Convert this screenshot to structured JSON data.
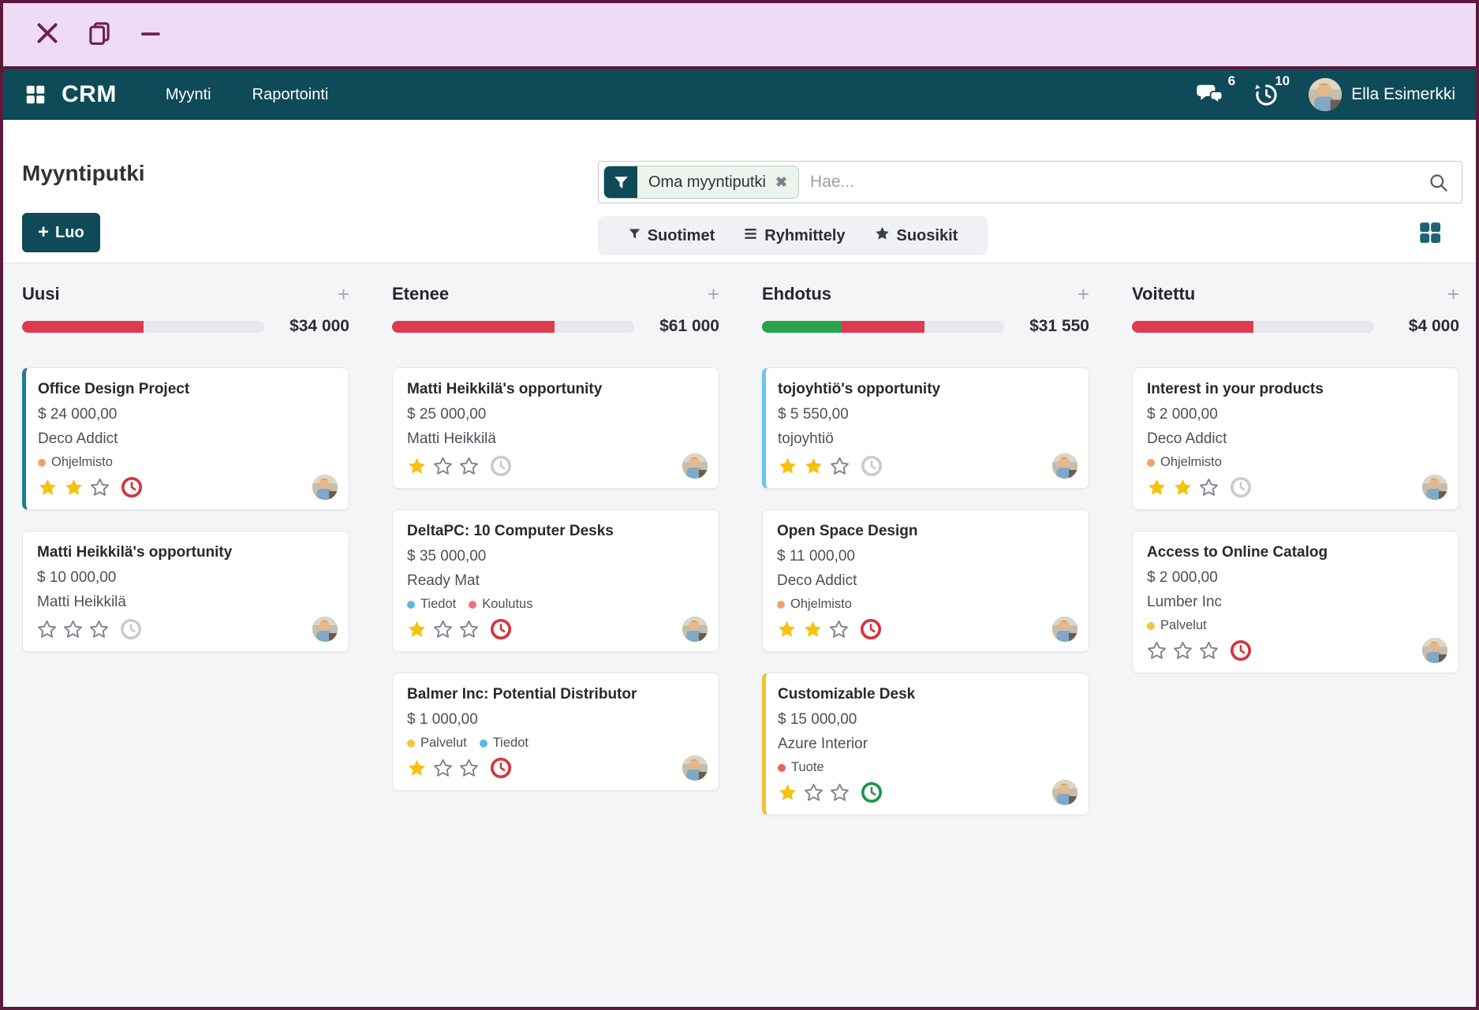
{
  "window": {
    "titlebar_color": "#eedcf6",
    "border_color": "#5c1b3c",
    "controls": [
      {
        "name": "close"
      },
      {
        "name": "restore"
      },
      {
        "name": "minimize"
      }
    ]
  },
  "navbar": {
    "bg_color": "#0e4a58",
    "app_name": "CRM",
    "menus": [
      "Myynti",
      "Raportointi"
    ],
    "icons": {
      "apps": "apps-grid-icon",
      "messages": "messages-bubble-icon",
      "activities": "activity-clock-icon"
    },
    "messages_count": "6",
    "activities_count": "10",
    "user_name": "Ella Esimerkki"
  },
  "header": {
    "title": "Myyntiputki",
    "create_label": "Luo",
    "search": {
      "filter_chip": "Oma myyntiputki",
      "chip_icon": "filter-funnel-icon",
      "remove_icon": "remove-filter-icon",
      "placeholder": "Hae...",
      "search_icon": "search-icon"
    },
    "controls": [
      {
        "label": "Suotimet",
        "icon": "filter-funnel-icon"
      },
      {
        "label": "Ryhmittely",
        "icon": "group-by-icon"
      },
      {
        "label": "Suosikit",
        "icon": "favorites-star-icon"
      }
    ],
    "view_switcher_icon": "kanban-view-icon"
  },
  "board": {
    "columns": [
      {
        "name": "Uusi",
        "amount": "$34 000",
        "progress": [
          {
            "color": "#de3b51",
            "pct": 50
          }
        ],
        "cards": [
          {
            "title": "Office Design Project",
            "amount": "$ 24 000,00",
            "partner": "Deco Addict",
            "tags": [
              {
                "label": "Ohjelmisto",
                "color": "#f0a26d"
              }
            ],
            "stars": 2,
            "stars_total": 3,
            "activity_color": "#d8323d",
            "accent_color": "#1a7f8e"
          },
          {
            "title": "Matti Heikkilä's opportunity",
            "amount": "$ 10 000,00",
            "partner": "Matti Heikkilä",
            "tags": [],
            "stars": 0,
            "stars_total": 3,
            "activity_color": "#c9cbce",
            "accent_color": null
          }
        ]
      },
      {
        "name": "Etenee",
        "amount": "$61 000",
        "progress": [
          {
            "color": "#de3b51",
            "pct": 67
          }
        ],
        "cards": [
          {
            "title": "Matti Heikkilä's opportunity",
            "amount": "$ 25 000,00",
            "partner": "Matti Heikkilä",
            "tags": [],
            "stars": 1,
            "stars_total": 3,
            "activity_color": "#c9cbce",
            "accent_color": null
          },
          {
            "title": "DeltaPC: 10 Computer Desks",
            "amount": "$ 35 000,00",
            "partner": "Ready Mat",
            "tags": [
              {
                "label": "Tiedot",
                "color": "#5db7e9"
              },
              {
                "label": "Koulutus",
                "color": "#f1717e"
              }
            ],
            "stars": 1,
            "stars_total": 3,
            "activity_color": "#d8323d",
            "accent_color": null
          },
          {
            "title": "Balmer Inc: Potential Distributor",
            "amount": "$ 1 000,00",
            "partner": null,
            "tags": [
              {
                "label": "Palvelut",
                "color": "#f2c53d"
              },
              {
                "label": "Tiedot",
                "color": "#5db7e9"
              }
            ],
            "stars": 1,
            "stars_total": 3,
            "activity_color": "#d8323d",
            "accent_color": null
          }
        ]
      },
      {
        "name": "Ehdotus",
        "amount": "$31 550",
        "progress": [
          {
            "color": "#28a24c",
            "pct": 33
          },
          {
            "color": "#de3b51",
            "pct": 34
          }
        ],
        "cards": [
          {
            "title": "tojoyhtiö's opportunity",
            "amount": "$ 5 550,00",
            "partner": "tojoyhtiö",
            "tags": [],
            "stars": 2,
            "stars_total": 3,
            "activity_color": "#c9cbce",
            "accent_color": "#6fc3ee"
          },
          {
            "title": "Open Space Design",
            "amount": "$ 11 000,00",
            "partner": "Deco Addict",
            "tags": [
              {
                "label": "Ohjelmisto",
                "color": "#f0a26d"
              }
            ],
            "stars": 2,
            "stars_total": 3,
            "activity_color": "#d8323d",
            "accent_color": null
          },
          {
            "title": "Customizable Desk",
            "amount": "$ 15 000,00",
            "partner": "Azure Interior",
            "tags": [
              {
                "label": "Tuote",
                "color": "#ec615e"
              }
            ],
            "stars": 1,
            "stars_total": 3,
            "activity_color": "#1f9447",
            "accent_color": "#f1c232"
          }
        ]
      },
      {
        "name": "Voitettu",
        "amount": "$4 000",
        "progress": [
          {
            "color": "#de3b51",
            "pct": 50
          }
        ],
        "cards": [
          {
            "title": "Interest in your products",
            "amount": "$ 2 000,00",
            "partner": "Deco Addict",
            "tags": [
              {
                "label": "Ohjelmisto",
                "color": "#f0a26d"
              }
            ],
            "stars": 2,
            "stars_total": 3,
            "activity_color": "#c9cbce",
            "accent_color": null
          },
          {
            "title": "Access to Online Catalog",
            "amount": "$ 2 000,00",
            "partner": "Lumber Inc",
            "tags": [
              {
                "label": "Palvelut",
                "color": "#f2c53d"
              }
            ],
            "stars": 0,
            "stars_total": 3,
            "activity_color": "#d8323d",
            "accent_color": null
          }
        ]
      }
    ]
  }
}
